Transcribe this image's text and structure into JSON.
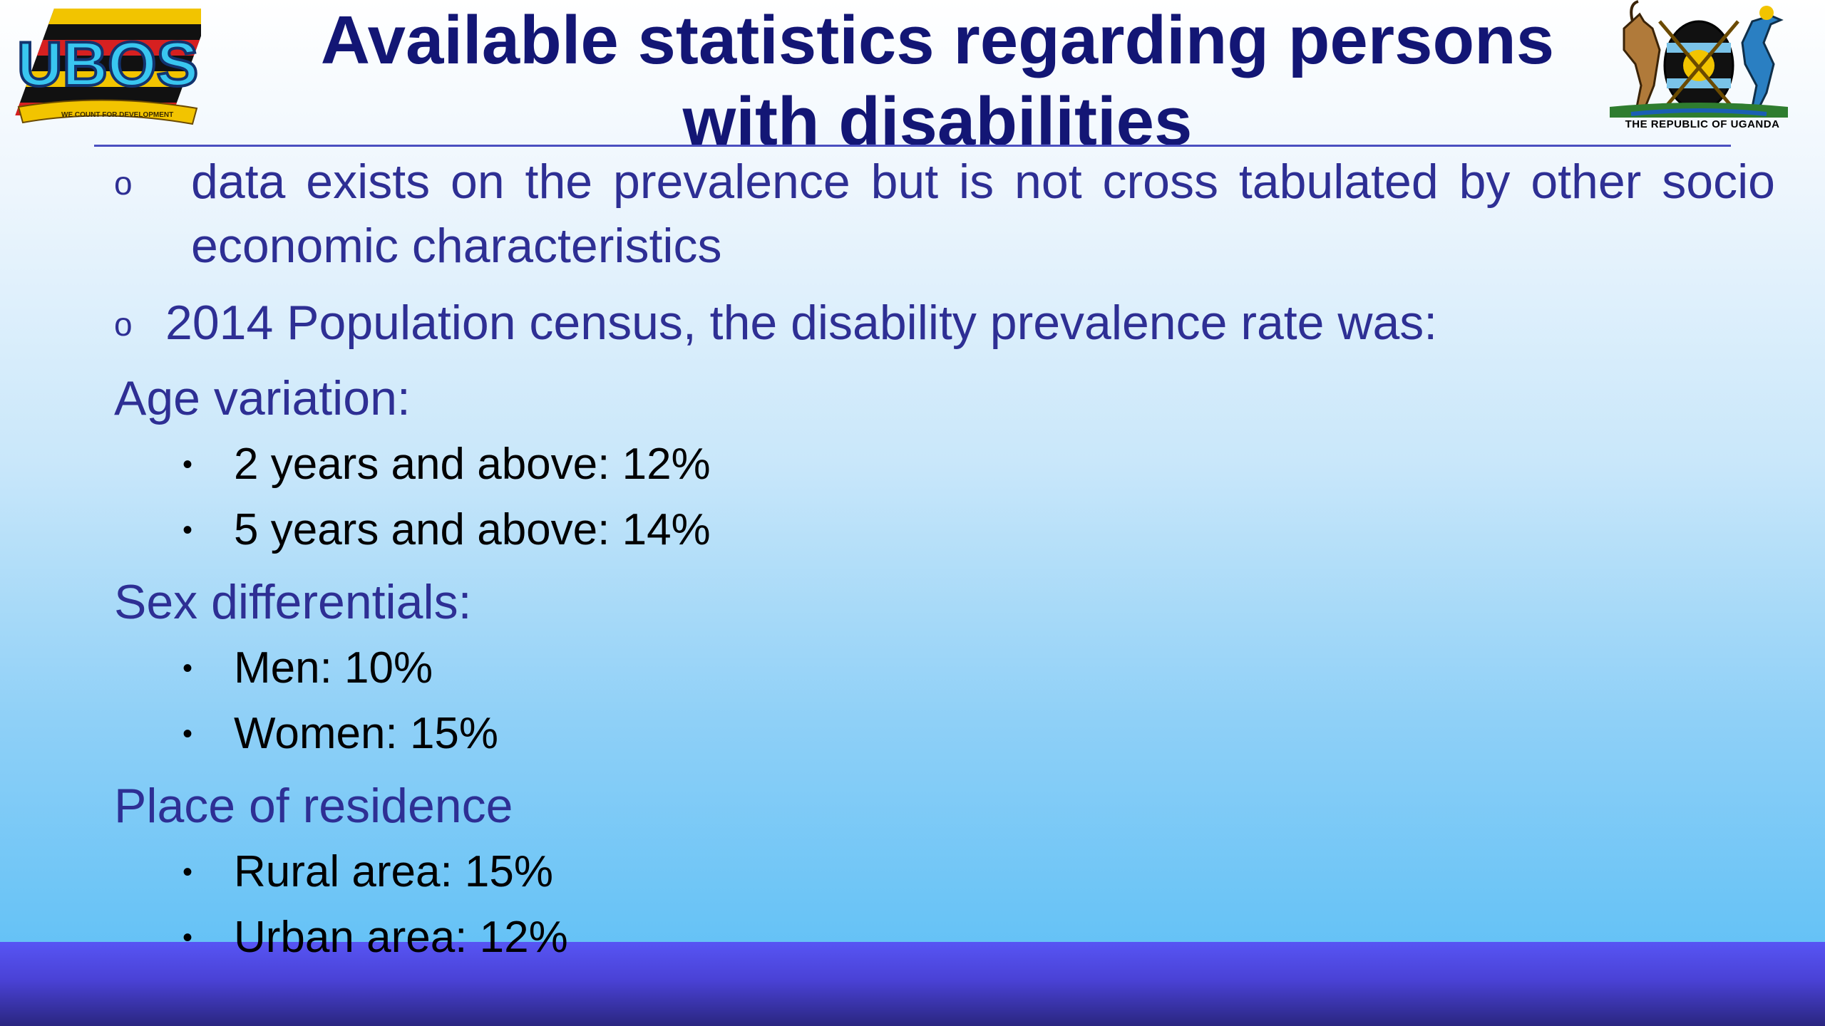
{
  "slide": {
    "title": "Available statistics regarding persons with disabilities",
    "logos": {
      "left": {
        "name": "UBOS",
        "tagline": "WE COUNT FOR DEVELOPMENT"
      },
      "right": {
        "caption": "THE REPUBLIC OF UGANDA"
      }
    },
    "bullets": [
      {
        "marker": "o",
        "text": "data exists on the prevalence but is not cross tabulated by other socio economic characteristics"
      },
      {
        "marker": "o",
        "text": "2014 Population census, the disability prevalence rate was:"
      }
    ],
    "sections": [
      {
        "heading": "Age variation:",
        "items": [
          "2 years and above: 12%",
          "5 years and above: 14%"
        ]
      },
      {
        "heading": "Sex differentials:",
        "items": [
          "Men: 10%",
          "Women: 15%"
        ]
      },
      {
        "heading": "Place of residence",
        "items": [
          "Rural area: 15%",
          "Urban area: 12%"
        ]
      }
    ],
    "sub_bullet": "•",
    "colors": {
      "title": "#131675",
      "body": "#2e2f94",
      "footer": "#4a42d6"
    }
  }
}
